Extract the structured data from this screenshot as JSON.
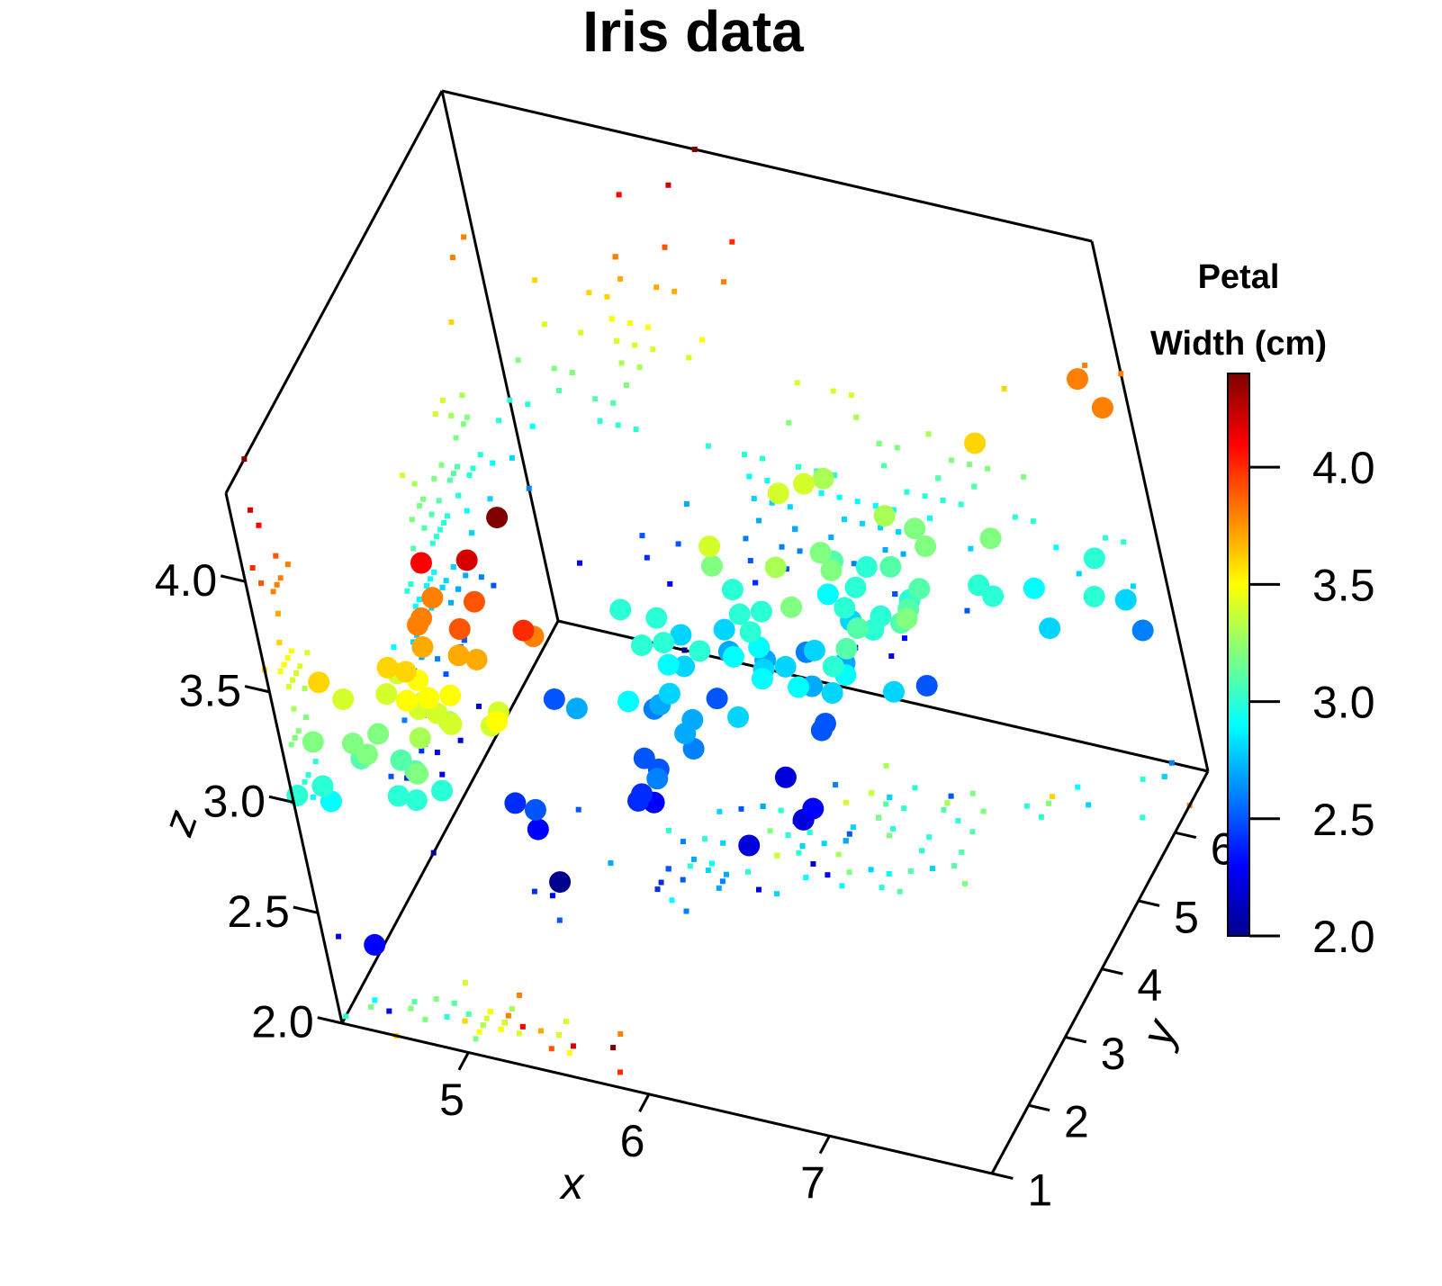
{
  "chart_data": {
    "type": "scatter",
    "title": "Iris data",
    "xlabel": "x",
    "ylabel": "y",
    "zlabel": "z",
    "xlim": [
      4.3,
      7.9
    ],
    "ylim": [
      1,
      6.9
    ],
    "zlim": [
      2.0,
      4.4
    ],
    "x_ticks": [
      "5",
      "6",
      "7"
    ],
    "y_ticks": [
      "1",
      "2",
      "3",
      "4",
      "5",
      "6"
    ],
    "z_ticks": [
      "2.0",
      "2.5",
      "3.0",
      "3.5",
      "4.0"
    ],
    "colorbar": {
      "title_line1": "Petal",
      "title_line2": "Width (cm)",
      "range": [
        2.0,
        4.4
      ],
      "ticks": [
        "2.0",
        "2.5",
        "3.0",
        "3.5",
        "4.0"
      ],
      "palette": [
        "#00008F",
        "#0000FF",
        "#0080FF",
        "#00FFFF",
        "#80FF80",
        "#FFFF00",
        "#FF8000",
        "#FF0000",
        "#800000"
      ]
    },
    "projections": "points projected as small squares onto the back walls and floor",
    "points": [
      [
        5.1,
        1.4,
        3.5
      ],
      [
        4.9,
        1.4,
        3.0
      ],
      [
        4.7,
        1.3,
        3.2
      ],
      [
        4.6,
        1.5,
        3.1
      ],
      [
        5.0,
        1.4,
        3.6
      ],
      [
        5.4,
        1.7,
        3.9
      ],
      [
        4.6,
        1.4,
        3.4
      ],
      [
        5.0,
        1.5,
        3.4
      ],
      [
        4.4,
        1.4,
        2.9
      ],
      [
        4.9,
        1.5,
        3.1
      ],
      [
        5.4,
        1.5,
        3.7
      ],
      [
        4.8,
        1.6,
        3.4
      ],
      [
        4.8,
        1.4,
        3.0
      ],
      [
        4.3,
        1.1,
        3.0
      ],
      [
        5.8,
        1.2,
        4.0
      ],
      [
        5.7,
        1.5,
        4.4
      ],
      [
        5.4,
        1.3,
        3.9
      ],
      [
        5.1,
        1.4,
        3.5
      ],
      [
        5.7,
        1.7,
        3.8
      ],
      [
        5.1,
        1.5,
        3.8
      ],
      [
        5.4,
        1.7,
        3.4
      ],
      [
        5.1,
        1.5,
        3.7
      ],
      [
        4.6,
        1.0,
        3.6
      ],
      [
        5.1,
        1.7,
        3.3
      ],
      [
        4.8,
        1.9,
        3.4
      ],
      [
        5.0,
        1.6,
        3.0
      ],
      [
        5.0,
        1.6,
        3.4
      ],
      [
        5.2,
        1.5,
        3.5
      ],
      [
        5.2,
        1.4,
        3.4
      ],
      [
        4.7,
        1.6,
        3.2
      ],
      [
        4.8,
        1.6,
        3.1
      ],
      [
        5.4,
        1.5,
        3.4
      ],
      [
        5.2,
        1.5,
        4.1
      ],
      [
        5.5,
        1.4,
        4.2
      ],
      [
        4.9,
        1.5,
        3.1
      ],
      [
        5.0,
        1.2,
        3.2
      ],
      [
        5.5,
        1.3,
        3.5
      ],
      [
        4.9,
        1.4,
        3.6
      ],
      [
        4.4,
        1.3,
        3.0
      ],
      [
        5.1,
        1.5,
        3.4
      ],
      [
        5.0,
        1.3,
        3.5
      ],
      [
        4.5,
        1.3,
        2.3
      ],
      [
        4.4,
        1.3,
        3.2
      ],
      [
        5.0,
        1.6,
        3.5
      ],
      [
        5.1,
        1.9,
        3.8
      ],
      [
        4.8,
        1.4,
        3.0
      ],
      [
        5.1,
        1.6,
        3.8
      ],
      [
        4.6,
        1.4,
        3.2
      ],
      [
        5.3,
        1.5,
        3.7
      ],
      [
        5.0,
        1.4,
        3.3
      ],
      [
        7.0,
        4.7,
        3.2
      ],
      [
        6.4,
        4.5,
        3.2
      ],
      [
        6.9,
        4.9,
        3.1
      ],
      [
        5.5,
        4.0,
        2.3
      ],
      [
        6.5,
        4.6,
        2.8
      ],
      [
        5.7,
        4.5,
        2.8
      ],
      [
        6.3,
        4.7,
        3.3
      ],
      [
        4.9,
        3.3,
        2.4
      ],
      [
        6.6,
        4.6,
        2.9
      ],
      [
        5.2,
        3.9,
        2.7
      ],
      [
        5.0,
        3.5,
        2.0
      ],
      [
        5.9,
        4.2,
        3.0
      ],
      [
        6.0,
        4.0,
        2.2
      ],
      [
        6.1,
        4.7,
        2.9
      ],
      [
        5.6,
        3.6,
        2.9
      ],
      [
        6.7,
        4.4,
        3.1
      ],
      [
        5.6,
        4.5,
        3.0
      ],
      [
        5.8,
        4.1,
        2.7
      ],
      [
        6.2,
        4.5,
        2.2
      ],
      [
        5.6,
        3.9,
        2.5
      ],
      [
        5.9,
        4.8,
        3.2
      ],
      [
        6.1,
        4.0,
        2.8
      ],
      [
        6.3,
        4.9,
        2.5
      ],
      [
        6.1,
        4.7,
        2.8
      ],
      [
        6.4,
        4.3,
        2.9
      ],
      [
        6.6,
        4.4,
        3.0
      ],
      [
        6.8,
        4.8,
        2.8
      ],
      [
        6.7,
        5.0,
        3.0
      ],
      [
        6.0,
        4.5,
        2.9
      ],
      [
        5.7,
        3.5,
        2.6
      ],
      [
        5.5,
        3.8,
        2.4
      ],
      [
        5.5,
        3.7,
        2.4
      ],
      [
        5.8,
        3.9,
        2.7
      ],
      [
        6.0,
        5.1,
        2.7
      ],
      [
        5.4,
        4.5,
        3.0
      ],
      [
        6.0,
        4.5,
        3.4
      ],
      [
        6.7,
        4.7,
        3.1
      ],
      [
        6.3,
        4.4,
        2.3
      ],
      [
        5.6,
        4.1,
        3.0
      ],
      [
        5.5,
        4.0,
        2.5
      ],
      [
        5.5,
        4.4,
        2.6
      ],
      [
        6.1,
        4.6,
        3.0
      ],
      [
        5.8,
        4.0,
        2.6
      ],
      [
        5.0,
        3.3,
        2.3
      ],
      [
        5.6,
        4.2,
        2.7
      ],
      [
        5.7,
        4.2,
        3.0
      ],
      [
        5.7,
        4.2,
        2.9
      ],
      [
        6.2,
        4.3,
        2.9
      ],
      [
        5.1,
        3.0,
        2.5
      ],
      [
        5.7,
        4.1,
        2.8
      ],
      [
        6.3,
        6.0,
        3.3
      ],
      [
        5.8,
        5.1,
        2.7
      ],
      [
        7.1,
        5.9,
        3.0
      ],
      [
        6.3,
        5.6,
        2.9
      ],
      [
        6.5,
        5.8,
        3.0
      ],
      [
        7.6,
        6.6,
        3.0
      ],
      [
        4.9,
        4.5,
        2.5
      ],
      [
        7.3,
        6.3,
        2.9
      ],
      [
        6.7,
        5.8,
        2.5
      ],
      [
        7.2,
        6.1,
        3.6
      ],
      [
        6.5,
        5.1,
        3.2
      ],
      [
        6.4,
        5.3,
        2.7
      ],
      [
        6.8,
        5.5,
        3.0
      ],
      [
        5.7,
        5.0,
        2.5
      ],
      [
        5.8,
        5.1,
        2.8
      ],
      [
        6.4,
        5.3,
        3.2
      ],
      [
        6.5,
        5.5,
        3.0
      ],
      [
        7.7,
        6.7,
        3.8
      ],
      [
        7.7,
        6.9,
        2.6
      ],
      [
        6.0,
        5.0,
        2.2
      ],
      [
        6.9,
        5.7,
        3.2
      ],
      [
        5.6,
        4.9,
        2.8
      ],
      [
        7.7,
        6.7,
        2.8
      ],
      [
        6.3,
        4.9,
        2.7
      ],
      [
        6.7,
        5.7,
        3.3
      ],
      [
        7.2,
        6.0,
        3.2
      ],
      [
        6.2,
        4.8,
        2.8
      ],
      [
        6.1,
        4.9,
        3.0
      ],
      [
        6.4,
        5.6,
        2.8
      ],
      [
        7.2,
        5.8,
        3.0
      ],
      [
        7.4,
        6.1,
        2.8
      ],
      [
        7.9,
        6.4,
        3.8
      ],
      [
        6.4,
        5.6,
        2.8
      ],
      [
        6.3,
        5.1,
        2.8
      ],
      [
        6.1,
        5.6,
        2.6
      ],
      [
        7.7,
        6.1,
        3.0
      ],
      [
        6.3,
        5.6,
        3.4
      ],
      [
        6.4,
        5.5,
        3.1
      ],
      [
        6.0,
        4.8,
        3.0
      ],
      [
        6.9,
        5.4,
        3.1
      ],
      [
        6.7,
        5.6,
        3.1
      ],
      [
        6.9,
        5.1,
        3.1
      ],
      [
        5.8,
        5.1,
        2.7
      ],
      [
        6.8,
        5.9,
        3.2
      ],
      [
        6.7,
        5.7,
        3.3
      ],
      [
        6.7,
        5.2,
        3.0
      ],
      [
        6.3,
        5.0,
        2.5
      ],
      [
        6.5,
        5.2,
        3.0
      ],
      [
        6.2,
        5.4,
        3.4
      ],
      [
        5.9,
        5.1,
        3.0
      ]
    ]
  }
}
